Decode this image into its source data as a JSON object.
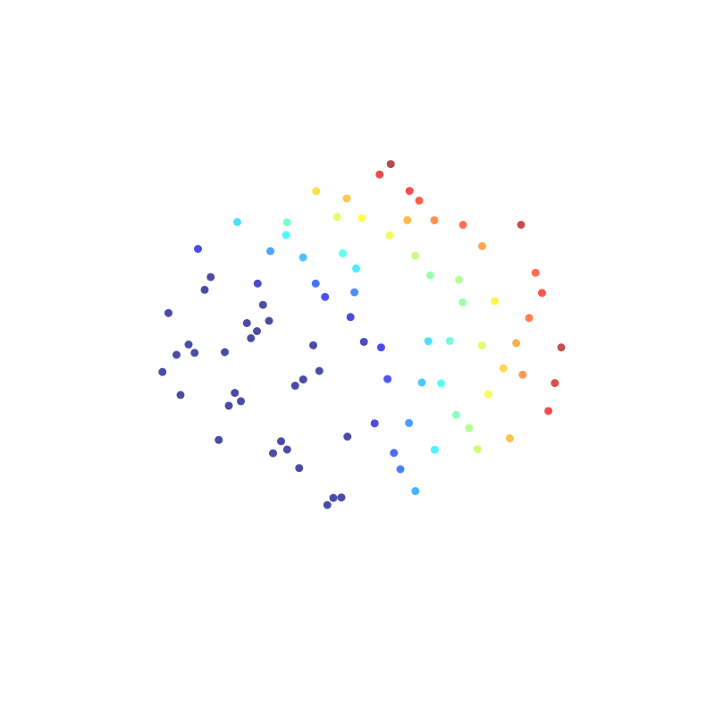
{
  "chart_data": {
    "type": "scatter3d",
    "colormap": "jet",
    "color_by": "x",
    "xlim": [
      0,
      1
    ],
    "ylim": [
      0,
      1
    ],
    "zlim": [
      0,
      1
    ],
    "x": [
      0,
      0,
      0,
      0,
      0,
      0,
      0,
      0,
      0,
      0,
      0,
      0,
      0,
      0,
      0,
      0,
      0,
      0,
      0,
      0,
      0,
      0,
      0,
      0,
      0,
      0,
      0,
      0,
      0,
      0,
      0.08,
      0.2,
      0.33,
      0.46,
      0.58,
      0.71,
      0.83,
      0.95,
      0.14,
      0.27,
      0.39,
      0.52,
      0.64,
      0.77,
      0.89,
      0.03,
      0.17,
      0.3,
      0.43,
      0.56,
      0.68,
      0.8,
      0.92,
      0.11,
      0.24,
      0.49,
      0.61,
      0.74,
      0.86,
      0.36,
      0.1,
      0.25,
      0.4,
      0.55,
      0.7,
      0.85,
      0.95,
      0.18,
      0.33,
      0.48,
      0.63,
      0.78,
      0.9,
      0.05,
      0.22,
      0.37,
      0.52,
      0.67,
      0.82,
      0.13,
      0.29,
      0.44,
      0.6,
      0.75,
      0.88,
      0.08,
      0.35,
      0.58,
      0.72,
      0.98
    ],
    "y": [
      0.12,
      0.35,
      0.58,
      0.81,
      0.94,
      0.22,
      0.47,
      0.69,
      0.88,
      0.05,
      0.31,
      0.53,
      0.76,
      0.15,
      0.42,
      0.64,
      0.9,
      0.27,
      0.5,
      0.73,
      0.08,
      0.38,
      0.61,
      0.84,
      0.19,
      0.44,
      0.97,
      0.66,
      0.29,
      0.55,
      0,
      0,
      0,
      0,
      0,
      0,
      0,
      0,
      0,
      0,
      0,
      0,
      0,
      0,
      0,
      0,
      0,
      0,
      0,
      0,
      0,
      0,
      0,
      0,
      0,
      0,
      0,
      0,
      0,
      0,
      0.9,
      0.7,
      0.5,
      0.3,
      0.8,
      0.6,
      0.2,
      0.4,
      0.95,
      0.15,
      0.65,
      0.45,
      0.85,
      0.55,
      0.25,
      0.75,
      0.05,
      0.92,
      0.35,
      0.3,
      0.58,
      0.82,
      0.48,
      0.18,
      0.68,
      0.12,
      0.38,
      0.72,
      0.52,
      0.88
    ],
    "z": [
      0.1,
      0.25,
      0.4,
      0.55,
      0.7,
      0.85,
      0.95,
      0.15,
      0.3,
      0.45,
      0.6,
      0.75,
      0.9,
      0.05,
      0.2,
      0.35,
      0.5,
      0.65,
      0.8,
      0.98,
      0.12,
      0.28,
      0.43,
      0.58,
      0.73,
      0.88,
      0.38,
      0.62,
      0.18,
      0.82,
      0.5,
      0.2,
      0.8,
      0.35,
      0.65,
      0.1,
      0.9,
      0.45,
      0.7,
      0.05,
      0.55,
      0.25,
      0.85,
      0.4,
      0.15,
      0.95,
      0.3,
      0.6,
      0.75,
      0.12,
      0.48,
      0.68,
      0.28,
      0.88,
      0.42,
      0.92,
      0.38,
      0.58,
      0.78,
      0.22,
      1,
      1,
      1,
      1,
      1,
      1,
      1,
      1,
      1,
      1,
      1,
      1,
      1,
      1,
      1,
      1,
      1,
      1,
      1,
      1,
      1,
      1,
      1,
      1,
      1,
      1,
      1,
      1,
      1,
      1
    ]
  }
}
